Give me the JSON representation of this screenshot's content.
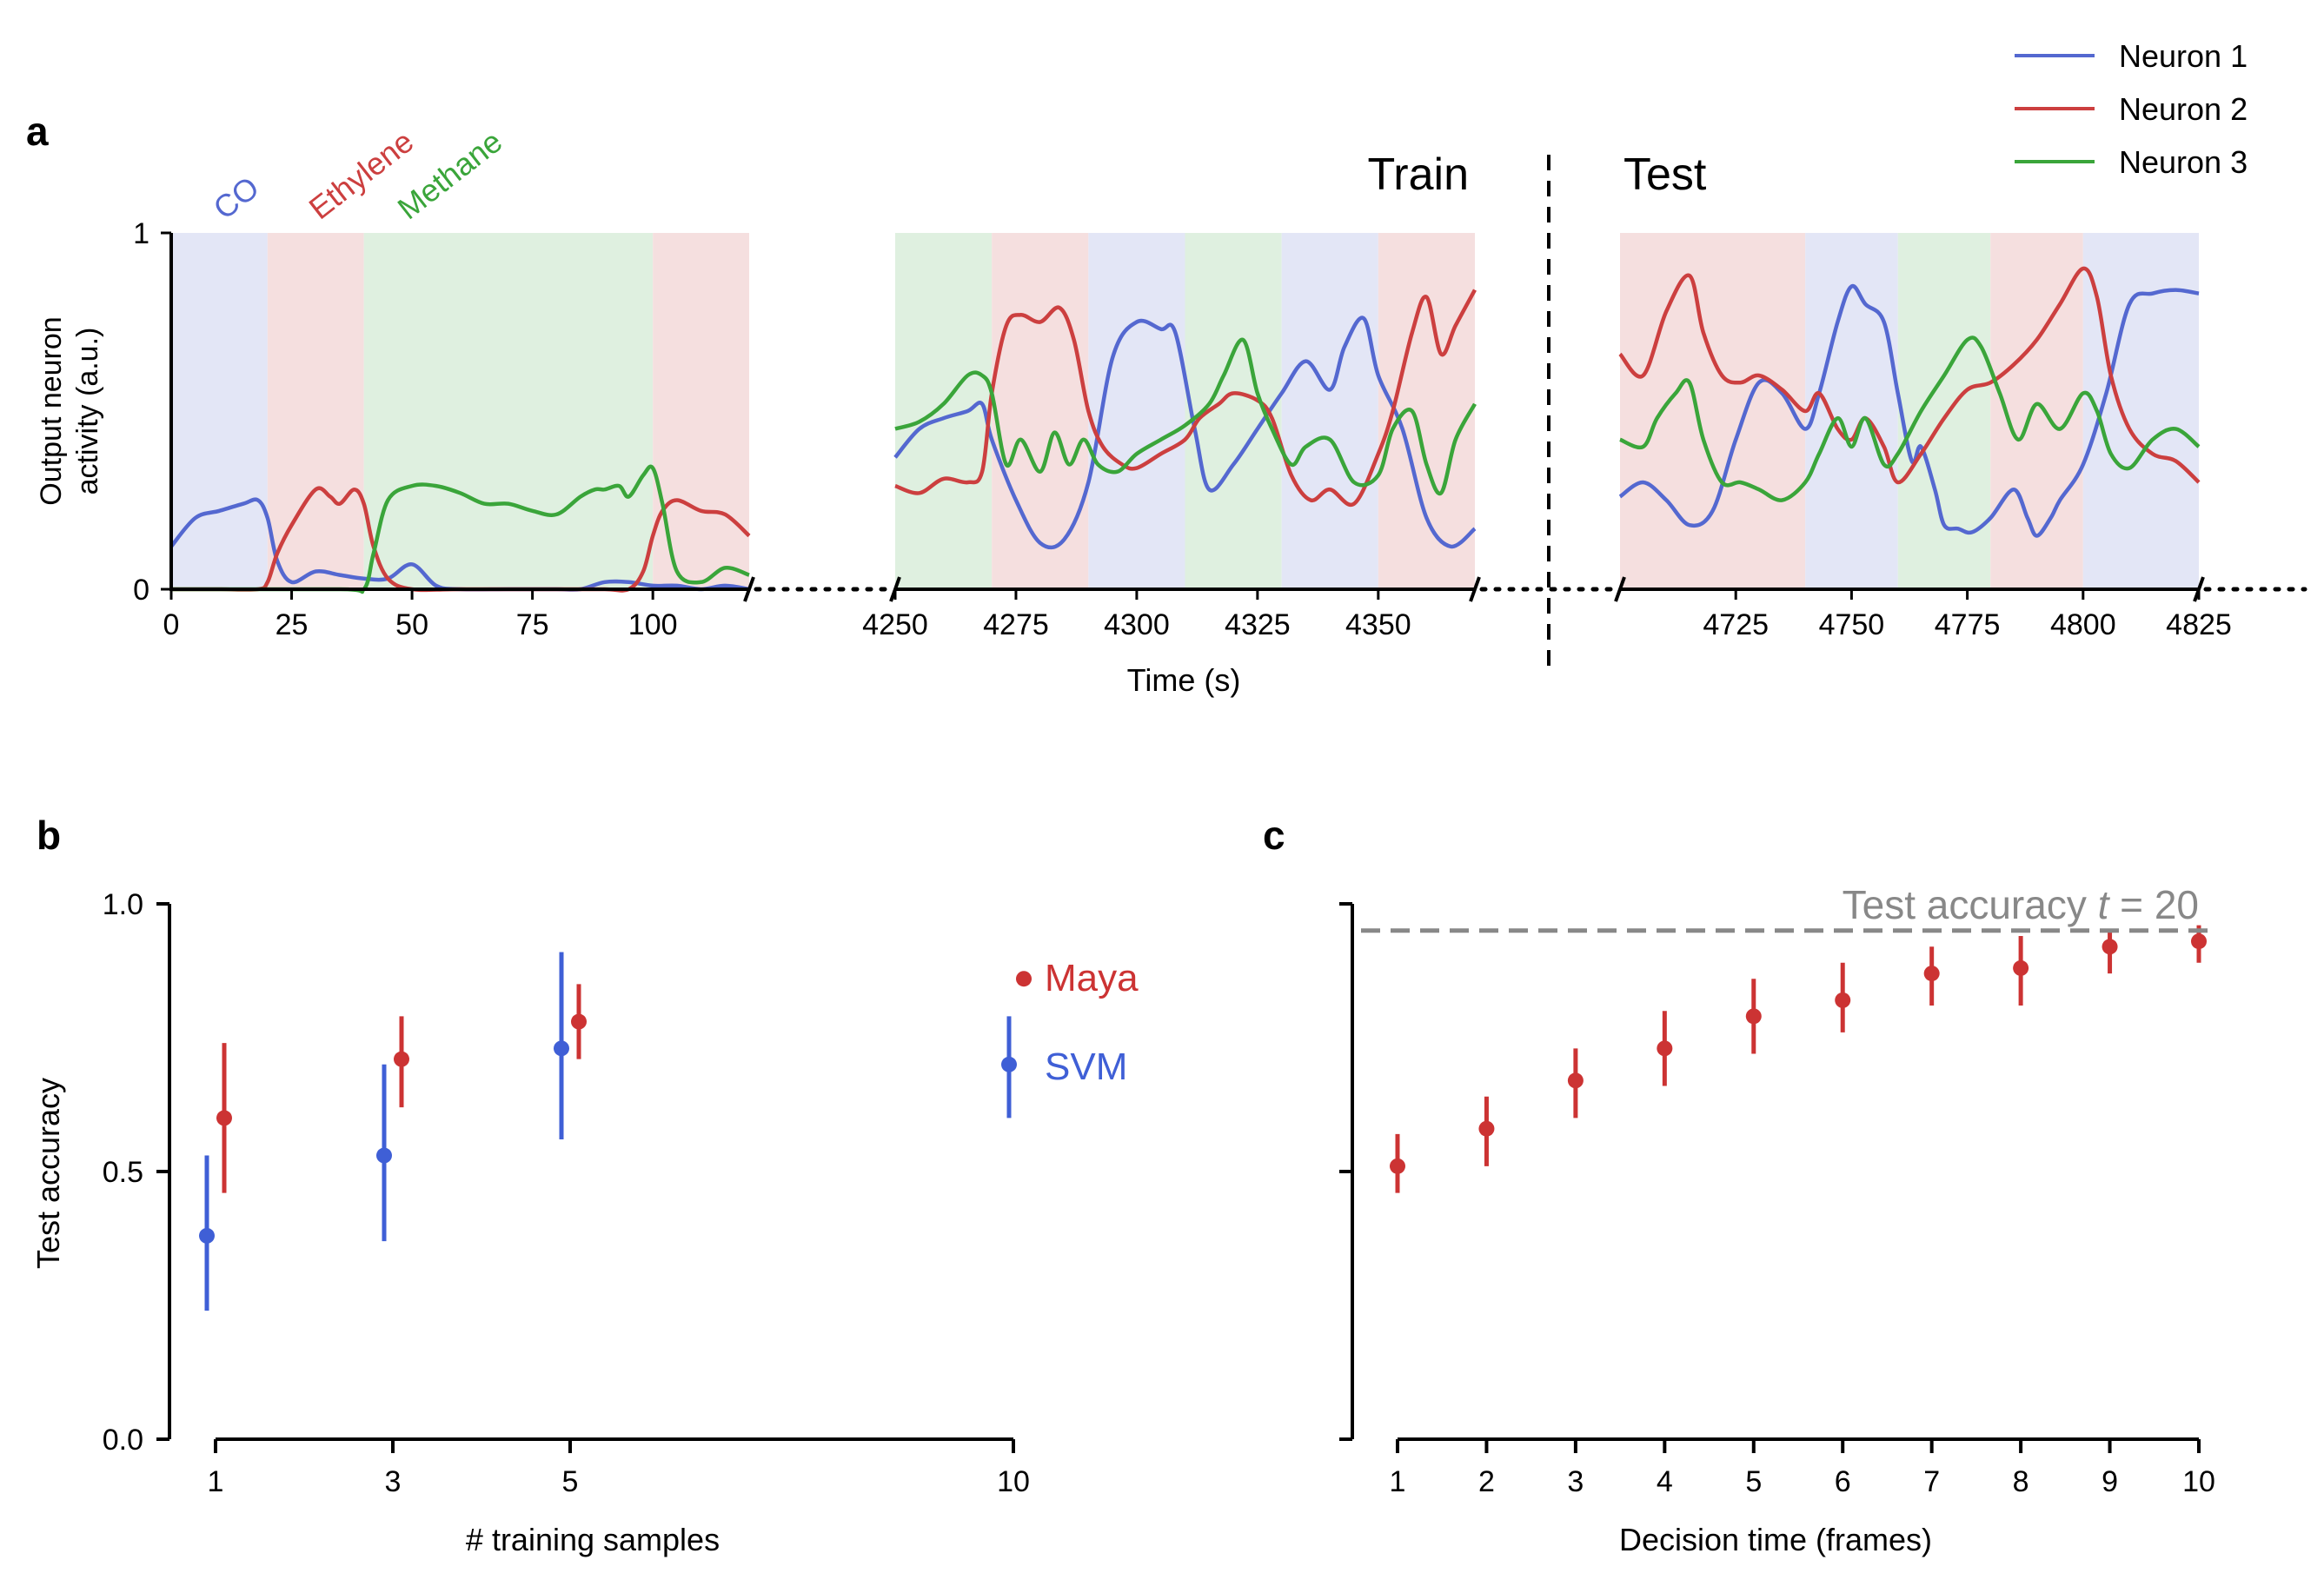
{
  "colors": {
    "neuron1": "#5468d0",
    "neuron2": "#cc3f3f",
    "neuron3": "#3aa53a",
    "co_band": "#e3e6f6",
    "ethylene_band": "#f5dfdf",
    "methane_band": "#dff0e0",
    "maya": "#cc3333",
    "svm": "#3f5fd6",
    "ref_line": "#888888"
  },
  "panel_labels": {
    "a": "a",
    "b": "b",
    "c": "c"
  },
  "chart_data": [
    {
      "type": "line",
      "panel": "a",
      "ylabel_line1": "Output neuron",
      "ylabel_line2": "activity (a.u.)",
      "xlabel": "Time (s)",
      "ylim": [
        0,
        1
      ],
      "yticks": [
        "0",
        "1"
      ],
      "gas_labels": [
        "CO",
        "Ethylene",
        "Methane"
      ],
      "train_label": "Train",
      "test_label": "Test",
      "legend": [
        "Neuron 1",
        "Neuron 2",
        "Neuron 3"
      ],
      "legend_position": "top-right",
      "segments": [
        {
          "xlim": [
            0,
            120
          ],
          "ticks": [
            0,
            25,
            50,
            75,
            100
          ],
          "bands": [
            {
              "from": 0,
              "to": 20,
              "gas": "CO"
            },
            {
              "from": 20,
              "to": 40,
              "gas": "Ethylene"
            },
            {
              "from": 40,
              "to": 100,
              "gas": "Methane"
            },
            {
              "from": 100,
              "to": 120,
              "gas": "Ethylene"
            }
          ],
          "series": [
            {
              "x": [
                0,
                5,
                10,
                15,
                18,
                20,
                22,
                25,
                30,
                35,
                40,
                45,
                50,
                55,
                60,
                70,
                80,
                85,
                90,
                95,
                100,
                105,
                110,
                115,
                120
              ],
              "y": [
                0.12,
                0.2,
                0.22,
                0.24,
                0.25,
                0.2,
                0.08,
                0.02,
                0.05,
                0.04,
                0.03,
                0.03,
                0.07,
                0.01,
                0.0,
                0.0,
                0.0,
                0.0,
                0.02,
                0.02,
                0.01,
                0.01,
                0.0,
                0.01,
                0.0
              ]
            },
            {
              "x": [
                0,
                10,
                18,
                20,
                22,
                25,
                30,
                33,
                35,
                38,
                40,
                42,
                45,
                50,
                60,
                80,
                90,
                95,
                98,
                100,
                102,
                105,
                110,
                115,
                120
              ],
              "y": [
                0.0,
                0.0,
                0.0,
                0.02,
                0.1,
                0.18,
                0.28,
                0.26,
                0.24,
                0.28,
                0.24,
                0.12,
                0.03,
                0.0,
                0.0,
                0.0,
                0.0,
                0.0,
                0.05,
                0.15,
                0.22,
                0.25,
                0.22,
                0.21,
                0.15
              ]
            },
            {
              "x": [
                0,
                35,
                40,
                42,
                45,
                50,
                55,
                60,
                65,
                70,
                75,
                80,
                85,
                88,
                90,
                93,
                95,
                98,
                100,
                102,
                105,
                110,
                115,
                120
              ],
              "y": [
                0.0,
                0.0,
                0.0,
                0.1,
                0.25,
                0.29,
                0.29,
                0.27,
                0.24,
                0.24,
                0.22,
                0.21,
                0.26,
                0.28,
                0.28,
                0.29,
                0.26,
                0.32,
                0.34,
                0.24,
                0.05,
                0.02,
                0.06,
                0.04
              ]
            }
          ]
        },
        {
          "xlim": [
            4250,
            4370
          ],
          "ticks": [
            4250,
            4275,
            4300,
            4325,
            4350
          ],
          "bands": [
            {
              "from": 4250,
              "to": 4270,
              "gas": "Methane"
            },
            {
              "from": 4270,
              "to": 4290,
              "gas": "Ethylene"
            },
            {
              "from": 4290,
              "to": 4310,
              "gas": "CO"
            },
            {
              "from": 4310,
              "to": 4330,
              "gas": "Methane"
            },
            {
              "from": 4330,
              "to": 4350,
              "gas": "CO"
            },
            {
              "from": 4350,
              "to": 4370,
              "gas": "Ethylene"
            }
          ],
          "series": [
            {
              "x": [
                4250,
                4255,
                4260,
                4265,
                4268,
                4270,
                4275,
                4280,
                4285,
                4290,
                4295,
                4300,
                4305,
                4308,
                4312,
                4315,
                4320,
                4325,
                4330,
                4335,
                4340,
                4343,
                4347,
                4350,
                4355,
                4360,
                4365,
                4370
              ],
              "y": [
                0.37,
                0.45,
                0.48,
                0.5,
                0.52,
                0.42,
                0.25,
                0.13,
                0.14,
                0.3,
                0.65,
                0.75,
                0.73,
                0.72,
                0.45,
                0.28,
                0.35,
                0.45,
                0.55,
                0.64,
                0.56,
                0.68,
                0.76,
                0.6,
                0.45,
                0.2,
                0.12,
                0.17
              ]
            },
            {
              "x": [
                4250,
                4255,
                4260,
                4265,
                4268,
                4270,
                4273,
                4276,
                4280,
                4284,
                4287,
                4290,
                4293,
                4297,
                4300,
                4305,
                4310,
                4313,
                4317,
                4320,
                4325,
                4328,
                4332,
                4336,
                4340,
                4345,
                4350,
                4353,
                4357,
                4360,
                4363,
                4366,
                4370
              ],
              "y": [
                0.29,
                0.27,
                0.31,
                0.3,
                0.33,
                0.55,
                0.74,
                0.77,
                0.75,
                0.79,
                0.7,
                0.5,
                0.4,
                0.35,
                0.34,
                0.38,
                0.42,
                0.48,
                0.52,
                0.55,
                0.53,
                0.48,
                0.32,
                0.25,
                0.28,
                0.24,
                0.38,
                0.5,
                0.72,
                0.82,
                0.66,
                0.74,
                0.84
              ]
            },
            {
              "x": [
                4250,
                4255,
                4260,
                4265,
                4268,
                4270,
                4273,
                4276,
                4280,
                4283,
                4286,
                4289,
                4292,
                4296,
                4300,
                4305,
                4310,
                4315,
                4318,
                4322,
                4325,
                4328,
                4332,
                4335,
                4340,
                4345,
                4350,
                4353,
                4357,
                4360,
                4363,
                4366,
                4370
              ],
              "y": [
                0.45,
                0.47,
                0.52,
                0.6,
                0.6,
                0.55,
                0.35,
                0.42,
                0.33,
                0.44,
                0.35,
                0.42,
                0.35,
                0.33,
                0.38,
                0.42,
                0.46,
                0.52,
                0.6,
                0.7,
                0.55,
                0.45,
                0.35,
                0.4,
                0.42,
                0.3,
                0.32,
                0.45,
                0.5,
                0.35,
                0.27,
                0.42,
                0.52
              ]
            }
          ]
        },
        {
          "xlim": [
            4700,
            4825
          ],
          "ticks": [
            4725,
            4750,
            4775,
            4800,
            4825
          ],
          "bands": [
            {
              "from": 4700,
              "to": 4740,
              "gas": "Ethylene"
            },
            {
              "from": 4740,
              "to": 4760,
              "gas": "CO"
            },
            {
              "from": 4760,
              "to": 4780,
              "gas": "Methane"
            },
            {
              "from": 4780,
              "to": 4800,
              "gas": "Ethylene"
            },
            {
              "from": 4800,
              "to": 4825,
              "gas": "CO"
            }
          ],
          "series": [
            {
              "x": [
                4700,
                4705,
                4710,
                4715,
                4720,
                4725,
                4730,
                4735,
                4740,
                4743,
                4747,
                4750,
                4753,
                4757,
                4760,
                4763,
                4765,
                4768,
                4770,
                4773,
                4776,
                4780,
                4785,
                4788,
                4790,
                4793,
                4795,
                4800,
                4805,
                4810,
                4815,
                4820,
                4825
              ],
              "y": [
                0.26,
                0.3,
                0.25,
                0.18,
                0.22,
                0.42,
                0.58,
                0.55,
                0.45,
                0.55,
                0.75,
                0.85,
                0.8,
                0.75,
                0.55,
                0.36,
                0.4,
                0.28,
                0.18,
                0.17,
                0.16,
                0.2,
                0.28,
                0.2,
                0.15,
                0.2,
                0.25,
                0.35,
                0.55,
                0.8,
                0.83,
                0.84,
                0.83
              ]
            },
            {
              "x": [
                4700,
                4705,
                4710,
                4715,
                4718,
                4722,
                4726,
                4730,
                4735,
                4740,
                4743,
                4747,
                4750,
                4753,
                4757,
                4760,
                4765,
                4770,
                4775,
                4780,
                4785,
                4790,
                4795,
                4800,
                4803,
                4806,
                4810,
                4815,
                4820,
                4825
              ],
              "y": [
                0.66,
                0.6,
                0.78,
                0.88,
                0.72,
                0.6,
                0.58,
                0.6,
                0.56,
                0.5,
                0.55,
                0.45,
                0.42,
                0.48,
                0.4,
                0.3,
                0.38,
                0.48,
                0.56,
                0.58,
                0.63,
                0.7,
                0.8,
                0.9,
                0.82,
                0.6,
                0.45,
                0.38,
                0.36,
                0.3
              ]
            },
            {
              "x": [
                4700,
                4705,
                4708,
                4712,
                4715,
                4718,
                4722,
                4726,
                4730,
                4735,
                4740,
                4743,
                4747,
                4750,
                4753,
                4757,
                4760,
                4765,
                4770,
                4775,
                4778,
                4782,
                4786,
                4790,
                4795,
                4800,
                4803,
                4806,
                4810,
                4815,
                4820,
                4825
              ],
              "y": [
                0.42,
                0.4,
                0.48,
                0.55,
                0.58,
                0.42,
                0.3,
                0.3,
                0.28,
                0.25,
                0.3,
                0.38,
                0.48,
                0.4,
                0.48,
                0.35,
                0.38,
                0.5,
                0.6,
                0.7,
                0.68,
                0.55,
                0.42,
                0.52,
                0.45,
                0.55,
                0.5,
                0.38,
                0.34,
                0.42,
                0.45,
                0.4
              ]
            }
          ]
        }
      ]
    },
    {
      "type": "scatter",
      "panel": "b",
      "xlabel": "# training samples",
      "ylabel": "Test accuracy",
      "ylim": [
        0,
        1
      ],
      "yticks": [
        "0.0",
        "0.5",
        "1.0"
      ],
      "xticks": [
        1,
        3,
        5,
        10
      ],
      "series": [
        {
          "name": "Maya",
          "x": [
            1,
            3,
            5,
            10
          ],
          "y": [
            0.6,
            0.71,
            0.78,
            0.86
          ],
          "err_low": [
            0.46,
            0.62,
            0.71,
            0.85
          ],
          "err_high": [
            0.74,
            0.79,
            0.85,
            0.87
          ]
        },
        {
          "name": "SVM",
          "x": [
            1,
            3,
            5,
            10
          ],
          "y": [
            0.38,
            0.53,
            0.73,
            0.7
          ],
          "err_low": [
            0.24,
            0.37,
            0.56,
            0.6
          ],
          "err_high": [
            0.53,
            0.7,
            0.91,
            0.79
          ]
        }
      ]
    },
    {
      "type": "scatter",
      "panel": "c",
      "xlabel": "Decision time (frames)",
      "ylim": [
        0,
        1
      ],
      "xticks": [
        1,
        2,
        3,
        4,
        5,
        6,
        7,
        8,
        9,
        10
      ],
      "reference_label": "Test accuracy ",
      "reference_var": "t",
      "reference_eq": " = 20",
      "reference_value": 0.95,
      "series": [
        {
          "name": "Maya",
          "x": [
            1,
            2,
            3,
            4,
            5,
            6,
            7,
            8,
            9,
            10
          ],
          "y": [
            0.51,
            0.58,
            0.67,
            0.73,
            0.79,
            0.82,
            0.87,
            0.88,
            0.92,
            0.93
          ],
          "err_low": [
            0.46,
            0.51,
            0.6,
            0.66,
            0.72,
            0.76,
            0.81,
            0.81,
            0.87,
            0.89
          ],
          "err_high": [
            0.57,
            0.64,
            0.73,
            0.8,
            0.86,
            0.89,
            0.92,
            0.94,
            0.95,
            0.96
          ]
        }
      ]
    }
  ]
}
